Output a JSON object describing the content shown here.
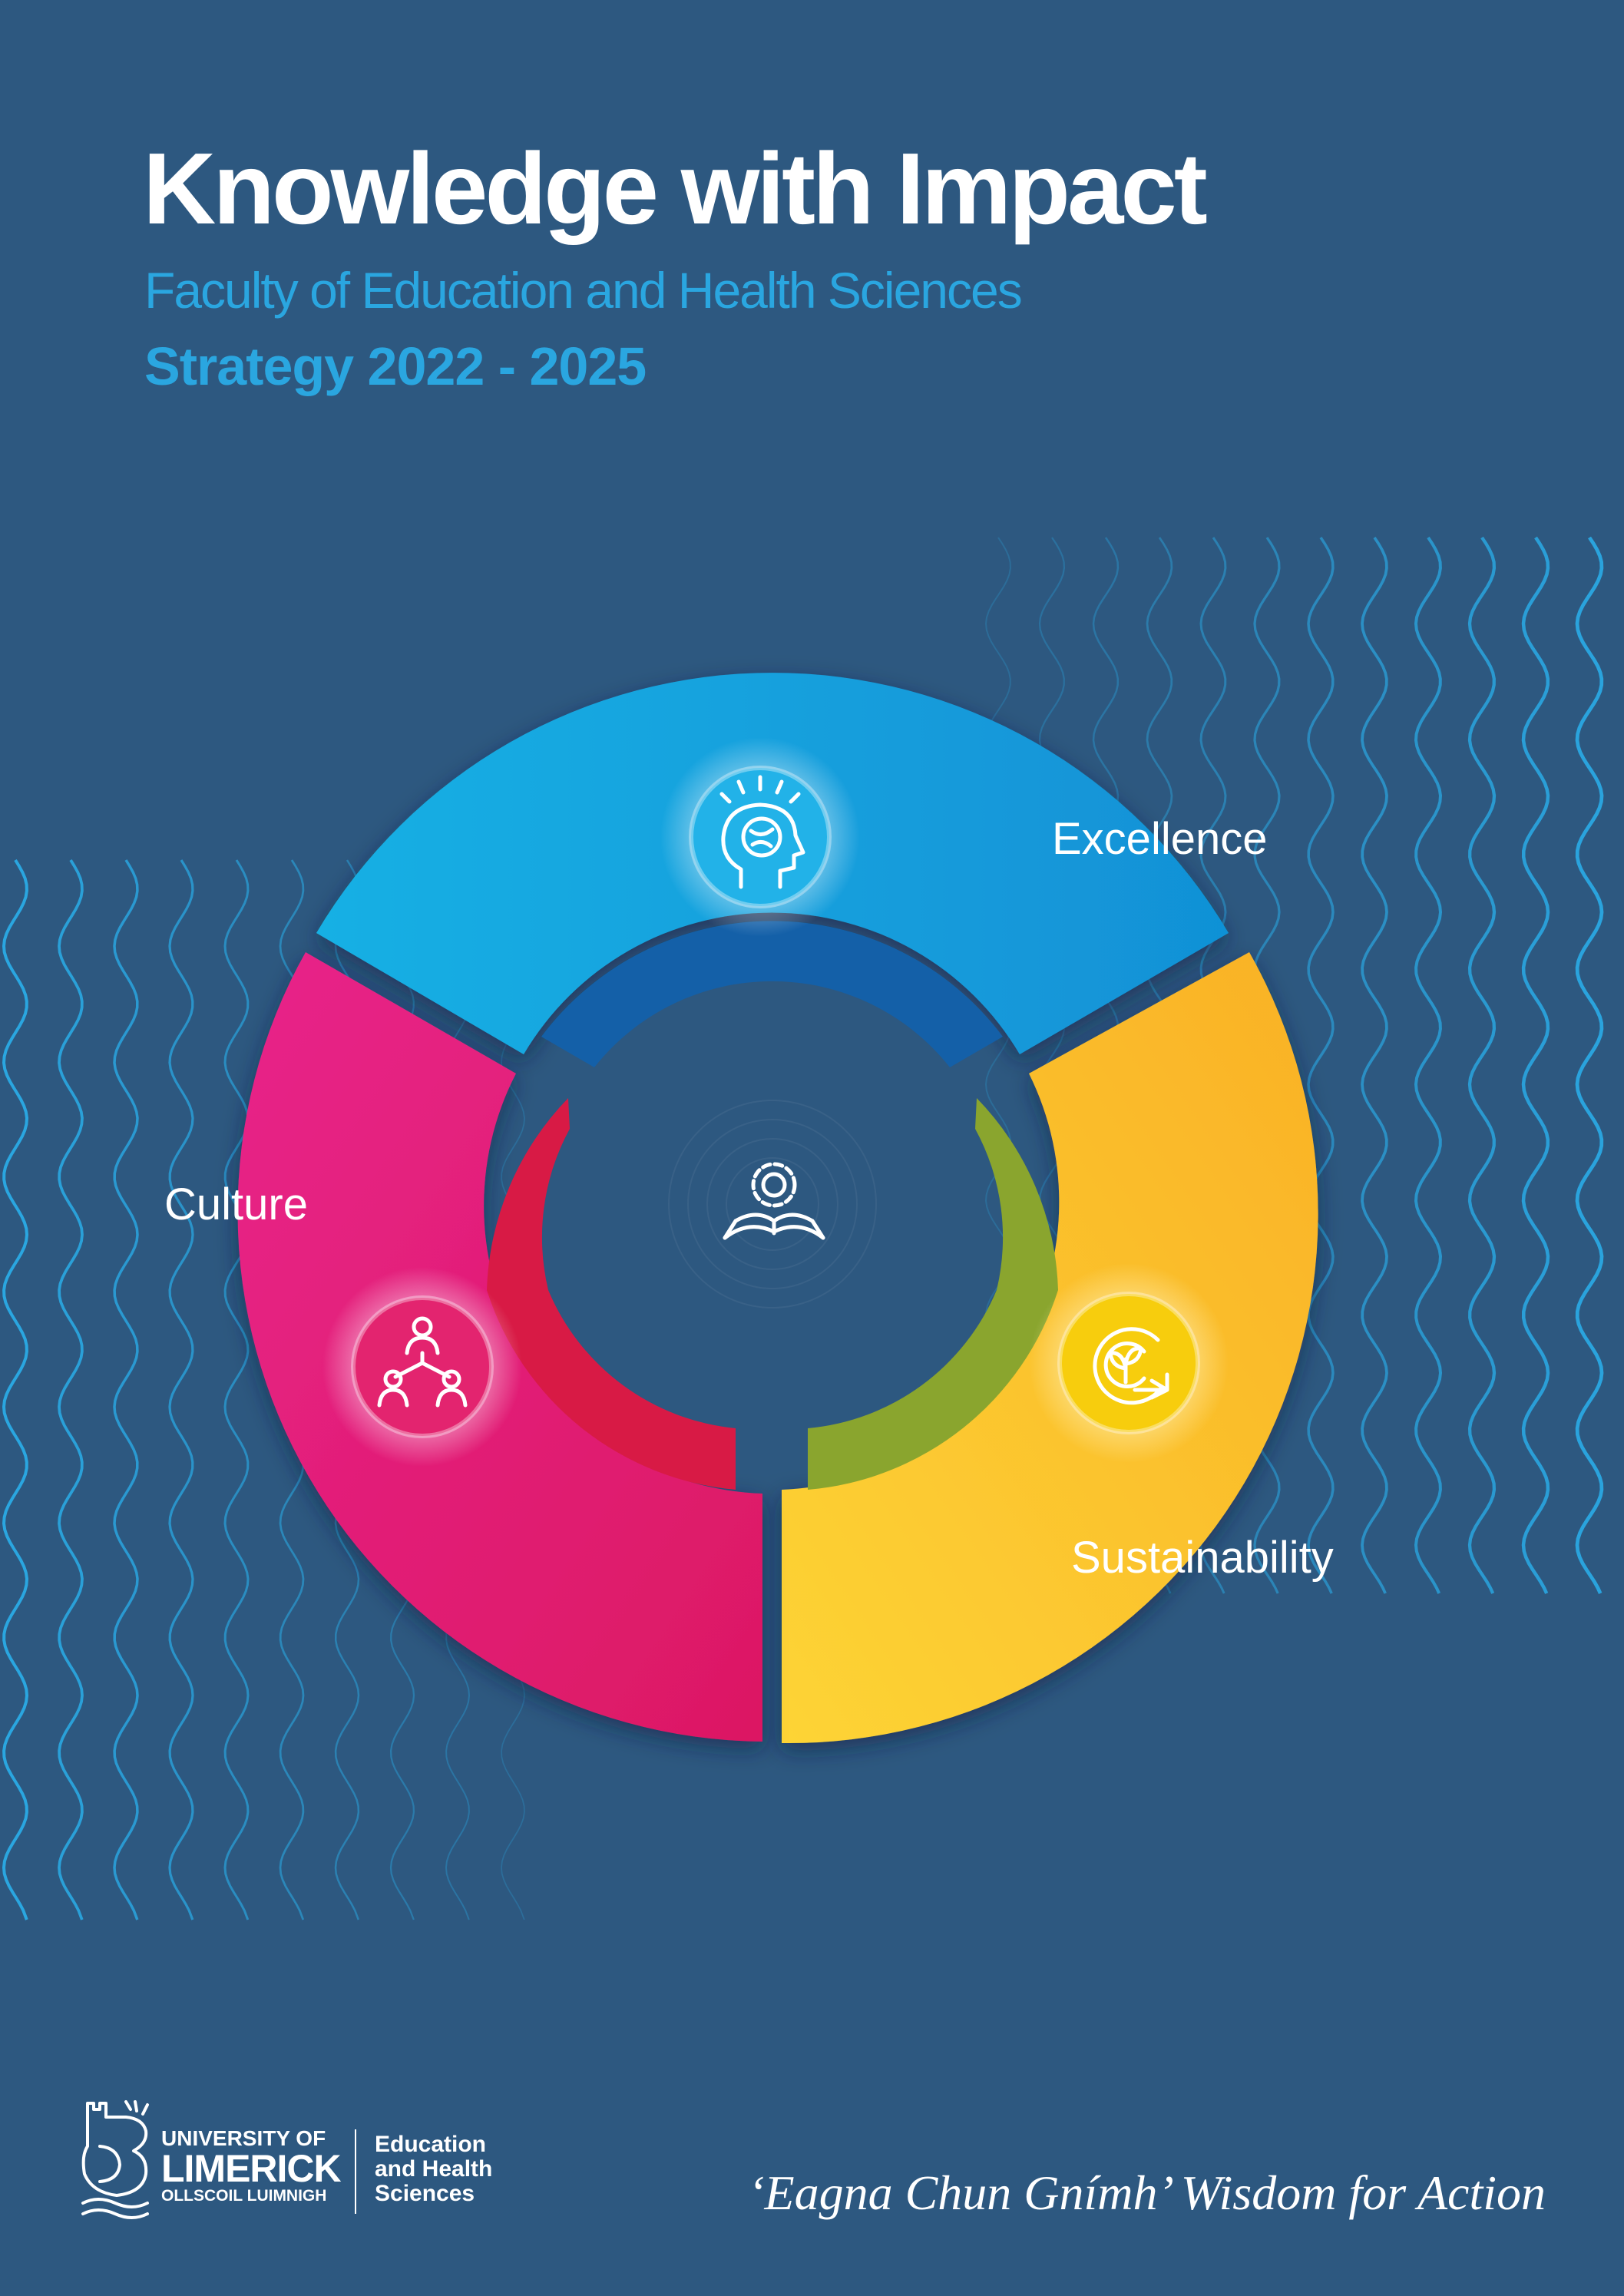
{
  "header": {
    "title": "Knowledge with Impact",
    "subtitle": "Faculty of Education and Health Sciences",
    "strategy": "Strategy 2022 - 2025"
  },
  "wheel": {
    "center_icon": "gear-book-icon",
    "segments": [
      {
        "label": "Excellence",
        "icon": "brain-lightbulb-icon",
        "color": "#15a3df",
        "inner_color": "#1460a8"
      },
      {
        "label": "Culture",
        "icon": "team-hierarchy-icon",
        "color": "#e2196b",
        "inner_color": "#d81a45"
      },
      {
        "label": "Sustainability",
        "icon": "recycle-leaf-icon",
        "color": "#fbbf2b",
        "inner_color": "#8aa52e"
      }
    ]
  },
  "footer": {
    "logo": {
      "line1": "UNIVERSITY OF",
      "line2": "LIMERICK",
      "line3": "OLLSCOIL LUIMNIGH",
      "faculty": "Education and Health Sciences"
    },
    "motto": "‘Eagna Chun Gnímh’ Wisdom for Action"
  },
  "colors": {
    "background": "#2d5880",
    "accent": "#2aa6e0",
    "wave": "#2aa6e0"
  }
}
